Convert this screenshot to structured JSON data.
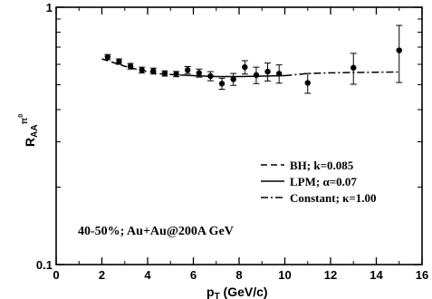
{
  "chart_data": {
    "type": "scatter",
    "xlabel": "p",
    "xlabel_sub": "T",
    "xlabel_suffix": " (GeV/c)",
    "ylabel_main": "R",
    "ylabel_sub": "AA",
    "ylabel_sup": "π",
    "ylabel_sup2": "0",
    "xlim": [
      0,
      16
    ],
    "ylim": [
      0.1,
      1
    ],
    "yscale": "log",
    "xticks": [
      0,
      2,
      4,
      6,
      8,
      10,
      12,
      14,
      16
    ],
    "xtick_labels": [
      "0",
      "2",
      "4",
      "6",
      "8",
      "10",
      "12",
      "14",
      "16"
    ],
    "yticks": [
      0.1,
      1
    ],
    "ytick_labels": [
      "0.1",
      "1"
    ],
    "annotation": "40-50%; Au+Au@200A GeV",
    "legend_position": "right",
    "legend": [
      {
        "label": "BH; k=0.085",
        "style": "dashed"
      },
      {
        "label": "LPM; α=0.07",
        "style": "solid"
      },
      {
        "label": "Constant; κ=1.00",
        "style": "dashdot"
      }
    ],
    "series": [
      {
        "type": "points",
        "x": [
          2.25,
          2.75,
          3.25,
          3.75,
          4.25,
          4.75,
          5.25,
          5.75,
          6.25,
          6.75,
          7.25,
          7.75,
          8.25,
          8.75,
          9.25,
          9.75,
          11.0,
          13.0,
          15.0
        ],
        "y": [
          0.64,
          0.615,
          0.59,
          0.57,
          0.565,
          0.553,
          0.55,
          0.57,
          0.555,
          0.54,
          0.505,
          0.525,
          0.585,
          0.545,
          0.562,
          0.552,
          0.508,
          0.582,
          0.68
        ],
        "err_lo": [
          0.015,
          0.015,
          0.015,
          0.015,
          0.015,
          0.013,
          0.013,
          0.018,
          0.02,
          0.022,
          0.025,
          0.028,
          0.035,
          0.04,
          0.045,
          0.045,
          0.045,
          0.08,
          0.17
        ],
        "err_hi": [
          0.015,
          0.015,
          0.015,
          0.015,
          0.015,
          0.013,
          0.013,
          0.018,
          0.02,
          0.022,
          0.025,
          0.028,
          0.035,
          0.04,
          0.045,
          0.045,
          0.045,
          0.08,
          0.17
        ]
      },
      {
        "type": "curve",
        "style": "dashed",
        "x": [
          2.0,
          2.5,
          3.0,
          3.5,
          4.0,
          4.5,
          5.0,
          5.5
        ],
        "y": [
          0.63,
          0.61,
          0.59,
          0.575,
          0.562,
          0.552,
          0.548,
          0.545
        ]
      },
      {
        "type": "curve",
        "style": "solid",
        "x": [
          5.5,
          6.0,
          7.0,
          8.0,
          9.0,
          10.0
        ],
        "y": [
          0.545,
          0.542,
          0.538,
          0.538,
          0.54,
          0.542
        ]
      },
      {
        "type": "curve",
        "style": "dashdot",
        "x": [
          10.0,
          11.0,
          12.0,
          13.0,
          14.0,
          15.0
        ],
        "y": [
          0.542,
          0.553,
          0.556,
          0.558,
          0.559,
          0.56
        ]
      }
    ]
  }
}
